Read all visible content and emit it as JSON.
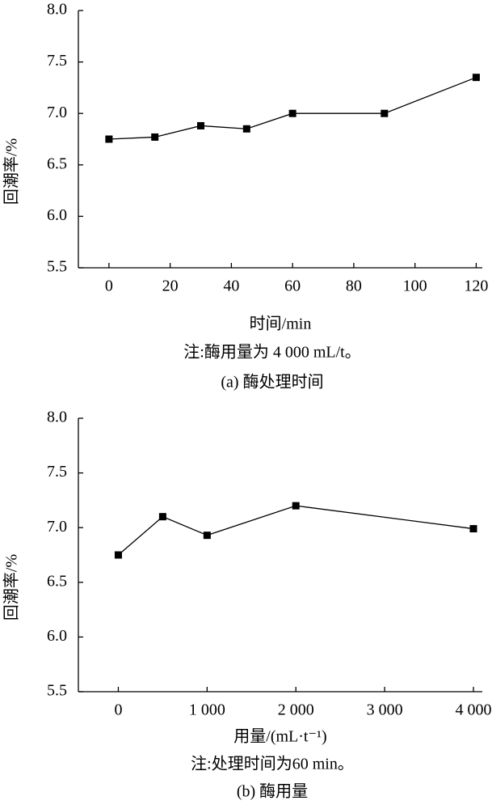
{
  "chart_data": [
    {
      "type": "line",
      "xlabel": "时间/min",
      "ylabel": "回潮率/%",
      "note": "注:酶用量为 4 000 mL/t。",
      "caption": "(a) 酶处理时间",
      "x": [
        0,
        15,
        30,
        45,
        60,
        90,
        120
      ],
      "series": [
        {
          "name": null,
          "color": "#000000",
          "values": [
            6.75,
            6.77,
            6.88,
            6.85,
            7.0,
            7.0,
            7.35
          ]
        }
      ],
      "xlim": [
        -10,
        122
      ],
      "xticks": [
        0,
        20,
        40,
        60,
        80,
        100,
        120
      ],
      "ylim": [
        5.5,
        8.0
      ],
      "yticks": [
        5.5,
        {
          "value": 6,
          "label": "6.0"
        },
        6.5,
        {
          "value": 7,
          "label": "7.0"
        },
        7.5,
        {
          "value": 8,
          "label": "8.0"
        }
      ]
    },
    {
      "type": "line",
      "xlabel": "用量/(mL·t⁻¹)",
      "ylabel": "回潮率/%",
      "note": "注:处理时间为60 min。",
      "caption": "(b) 酶用量",
      "x": [
        0,
        500,
        1000,
        2000,
        4000
      ],
      "series": [
        {
          "name": null,
          "color": "#000000",
          "values": [
            6.75,
            7.1,
            6.93,
            7.2,
            6.99
          ]
        }
      ],
      "xlim": [
        -450,
        4100
      ],
      "xticks": [
        0,
        {
          "value": 1000,
          "label": "1 000"
        },
        {
          "value": 2000,
          "label": "2 000"
        },
        {
          "value": 3000,
          "label": "3 000"
        },
        {
          "value": 4000,
          "label": "4 000"
        }
      ],
      "ylim": [
        5.5,
        8.0
      ],
      "yticks": [
        5.5,
        {
          "value": 6,
          "label": "6.0"
        },
        6.5,
        {
          "value": 7,
          "label": "7.0"
        },
        7.5,
        {
          "value": 8,
          "label": "8.0"
        }
      ]
    }
  ]
}
